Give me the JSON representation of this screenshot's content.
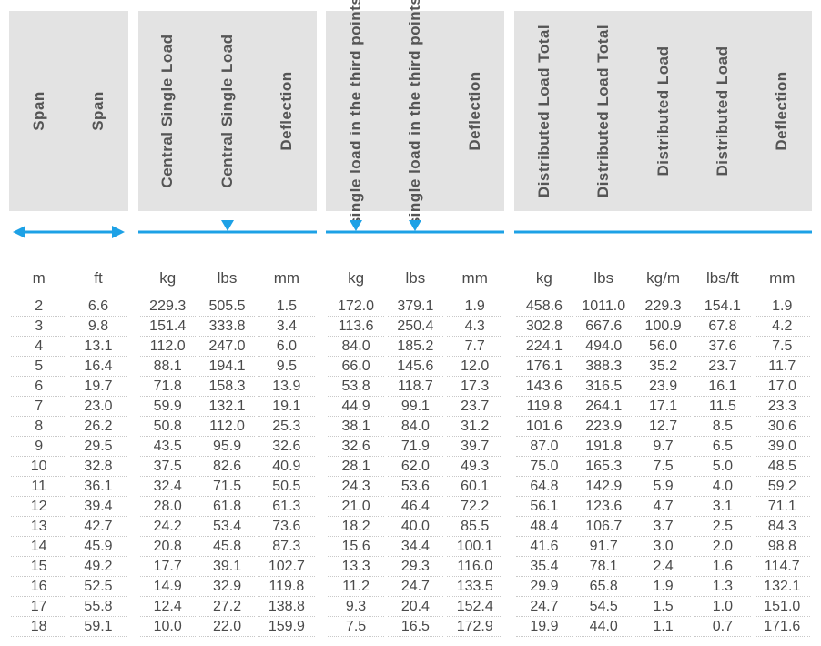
{
  "colors": {
    "header_bg": "#e3e3e3",
    "text": "#4a4a4a",
    "line": "#1da1e6",
    "dotted": "#c9c9c9",
    "page_bg": "#ffffff"
  },
  "typography": {
    "font_family": "Arial",
    "header_fontsize": 17,
    "unit_fontsize": 17,
    "data_fontsize": 16
  },
  "headers": [
    "Span",
    "Span",
    "Central Single Load",
    "Central Single Load",
    "Deflection",
    "single load in the third points",
    "single load in the third points",
    "Deflection",
    "Distributed Load Total",
    "Distributed Load Total",
    "Distributed Load",
    "Distributed Load",
    "Deflection"
  ],
  "units": [
    "m",
    "ft",
    "kg",
    "lbs",
    "mm",
    "kg",
    "lbs",
    "mm",
    "kg",
    "lbs",
    "kg/m",
    "lbs/ft",
    "mm"
  ],
  "rows": [
    [
      "2",
      "6.6",
      "229.3",
      "505.5",
      "1.5",
      "172.0",
      "379.1",
      "1.9",
      "458.6",
      "1011.0",
      "229.3",
      "154.1",
      "1.9"
    ],
    [
      "3",
      "9.8",
      "151.4",
      "333.8",
      "3.4",
      "113.6",
      "250.4",
      "4.3",
      "302.8",
      "667.6",
      "100.9",
      "67.8",
      "4.2"
    ],
    [
      "4",
      "13.1",
      "112.0",
      "247.0",
      "6.0",
      "84.0",
      "185.2",
      "7.7",
      "224.1",
      "494.0",
      "56.0",
      "37.6",
      "7.5"
    ],
    [
      "5",
      "16.4",
      "88.1",
      "194.1",
      "9.5",
      "66.0",
      "145.6",
      "12.0",
      "176.1",
      "388.3",
      "35.2",
      "23.7",
      "11.7"
    ],
    [
      "6",
      "19.7",
      "71.8",
      "158.3",
      "13.9",
      "53.8",
      "118.7",
      "17.3",
      "143.6",
      "316.5",
      "23.9",
      "16.1",
      "17.0"
    ],
    [
      "7",
      "23.0",
      "59.9",
      "132.1",
      "19.1",
      "44.9",
      "99.1",
      "23.7",
      "119.8",
      "264.1",
      "17.1",
      "11.5",
      "23.3"
    ],
    [
      "8",
      "26.2",
      "50.8",
      "112.0",
      "25.3",
      "38.1",
      "84.0",
      "31.2",
      "101.6",
      "223.9",
      "12.7",
      "8.5",
      "30.6"
    ],
    [
      "9",
      "29.5",
      "43.5",
      "95.9",
      "32.6",
      "32.6",
      "71.9",
      "39.7",
      "87.0",
      "191.8",
      "9.7",
      "6.5",
      "39.0"
    ],
    [
      "10",
      "32.8",
      "37.5",
      "82.6",
      "40.9",
      "28.1",
      "62.0",
      "49.3",
      "75.0",
      "165.3",
      "7.5",
      "5.0",
      "48.5"
    ],
    [
      "11",
      "36.1",
      "32.4",
      "71.5",
      "50.5",
      "24.3",
      "53.6",
      "60.1",
      "64.8",
      "142.9",
      "5.9",
      "4.0",
      "59.2"
    ],
    [
      "12",
      "39.4",
      "28.0",
      "61.8",
      "61.3",
      "21.0",
      "46.4",
      "72.2",
      "56.1",
      "123.6",
      "4.7",
      "3.1",
      "71.1"
    ],
    [
      "13",
      "42.7",
      "24.2",
      "53.4",
      "73.6",
      "18.2",
      "40.0",
      "85.5",
      "48.4",
      "106.7",
      "3.7",
      "2.5",
      "84.3"
    ],
    [
      "14",
      "45.9",
      "20.8",
      "45.8",
      "87.3",
      "15.6",
      "34.4",
      "100.1",
      "41.6",
      "91.7",
      "3.0",
      "2.0",
      "98.8"
    ],
    [
      "15",
      "49.2",
      "17.7",
      "39.1",
      "102.7",
      "13.3",
      "29.3",
      "116.0",
      "35.4",
      "78.1",
      "2.4",
      "1.6",
      "114.7"
    ],
    [
      "16",
      "52.5",
      "14.9",
      "32.9",
      "119.8",
      "11.2",
      "24.7",
      "133.5",
      "29.9",
      "65.8",
      "1.9",
      "1.3",
      "132.1"
    ],
    [
      "17",
      "55.8",
      "12.4",
      "27.2",
      "138.8",
      "9.3",
      "20.4",
      "152.4",
      "24.7",
      "54.5",
      "1.5",
      "1.0",
      "151.0"
    ],
    [
      "18",
      "59.1",
      "10.0",
      "22.0",
      "159.9",
      "7.5",
      "16.5",
      "172.9",
      "19.9",
      "44.0",
      "1.1",
      "0.7",
      "171.6"
    ]
  ]
}
